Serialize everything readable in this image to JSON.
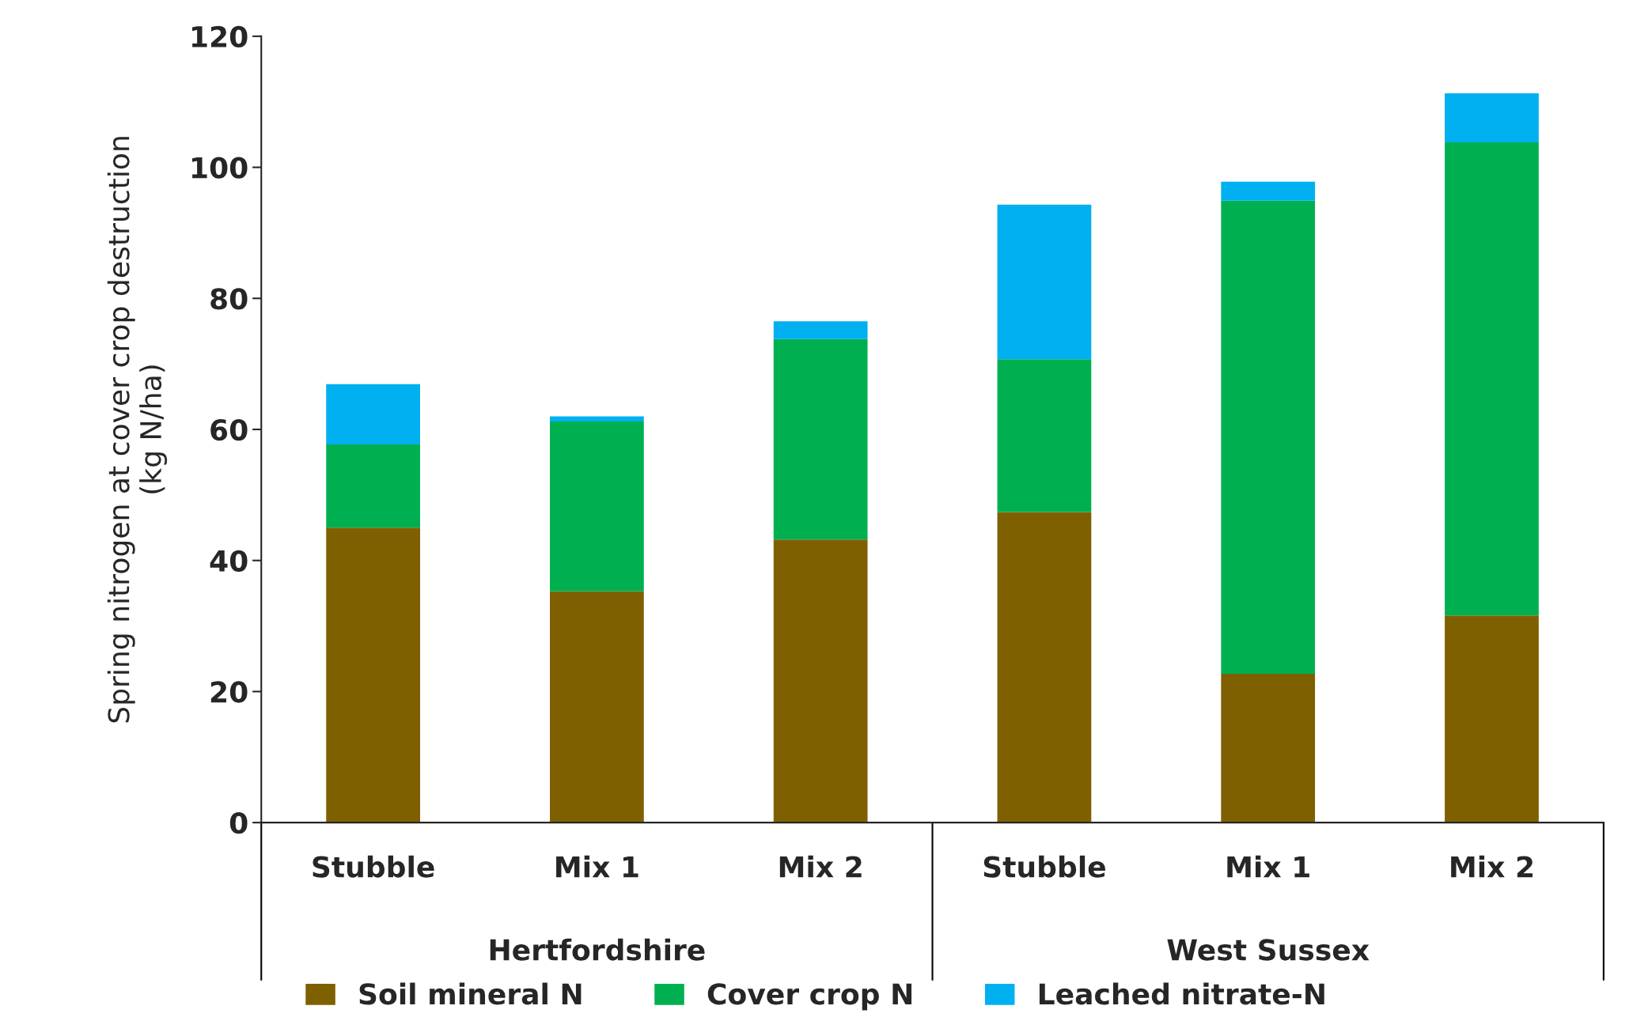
{
  "chart_data": {
    "type": "bar",
    "stacked": true,
    "ylabel": "Spring nitrogen at cover crop destruction\n(kg N/ha)",
    "categories": [
      "Stubble",
      "Mix 1",
      "Mix 2",
      "Stubble",
      "Mix 1",
      "Mix 2"
    ],
    "series": [
      {
        "name": "Soil mineral N",
        "color": "#7f6000",
        "values": [
          45,
          35.3,
          43.2,
          47.4,
          22.7,
          31.6
        ]
      },
      {
        "name": "Cover crop N",
        "color": "#00b050",
        "values": [
          12.7,
          25.9,
          30.6,
          23.3,
          72.2,
          72.2
        ]
      },
      {
        "name": "Leached nitrate-N",
        "color": "#00b0f0",
        "values": [
          9.2,
          0.8,
          2.7,
          23.6,
          2.9,
          7.5
        ]
      }
    ],
    "annotations": [
      "Hertfordshire",
      "West Sussex"
    ],
    "ylim": [
      0,
      120
    ],
    "yticks": [
      0,
      20,
      40,
      60,
      80,
      100,
      120
    ],
    "grid": false,
    "legend": "bottom"
  }
}
